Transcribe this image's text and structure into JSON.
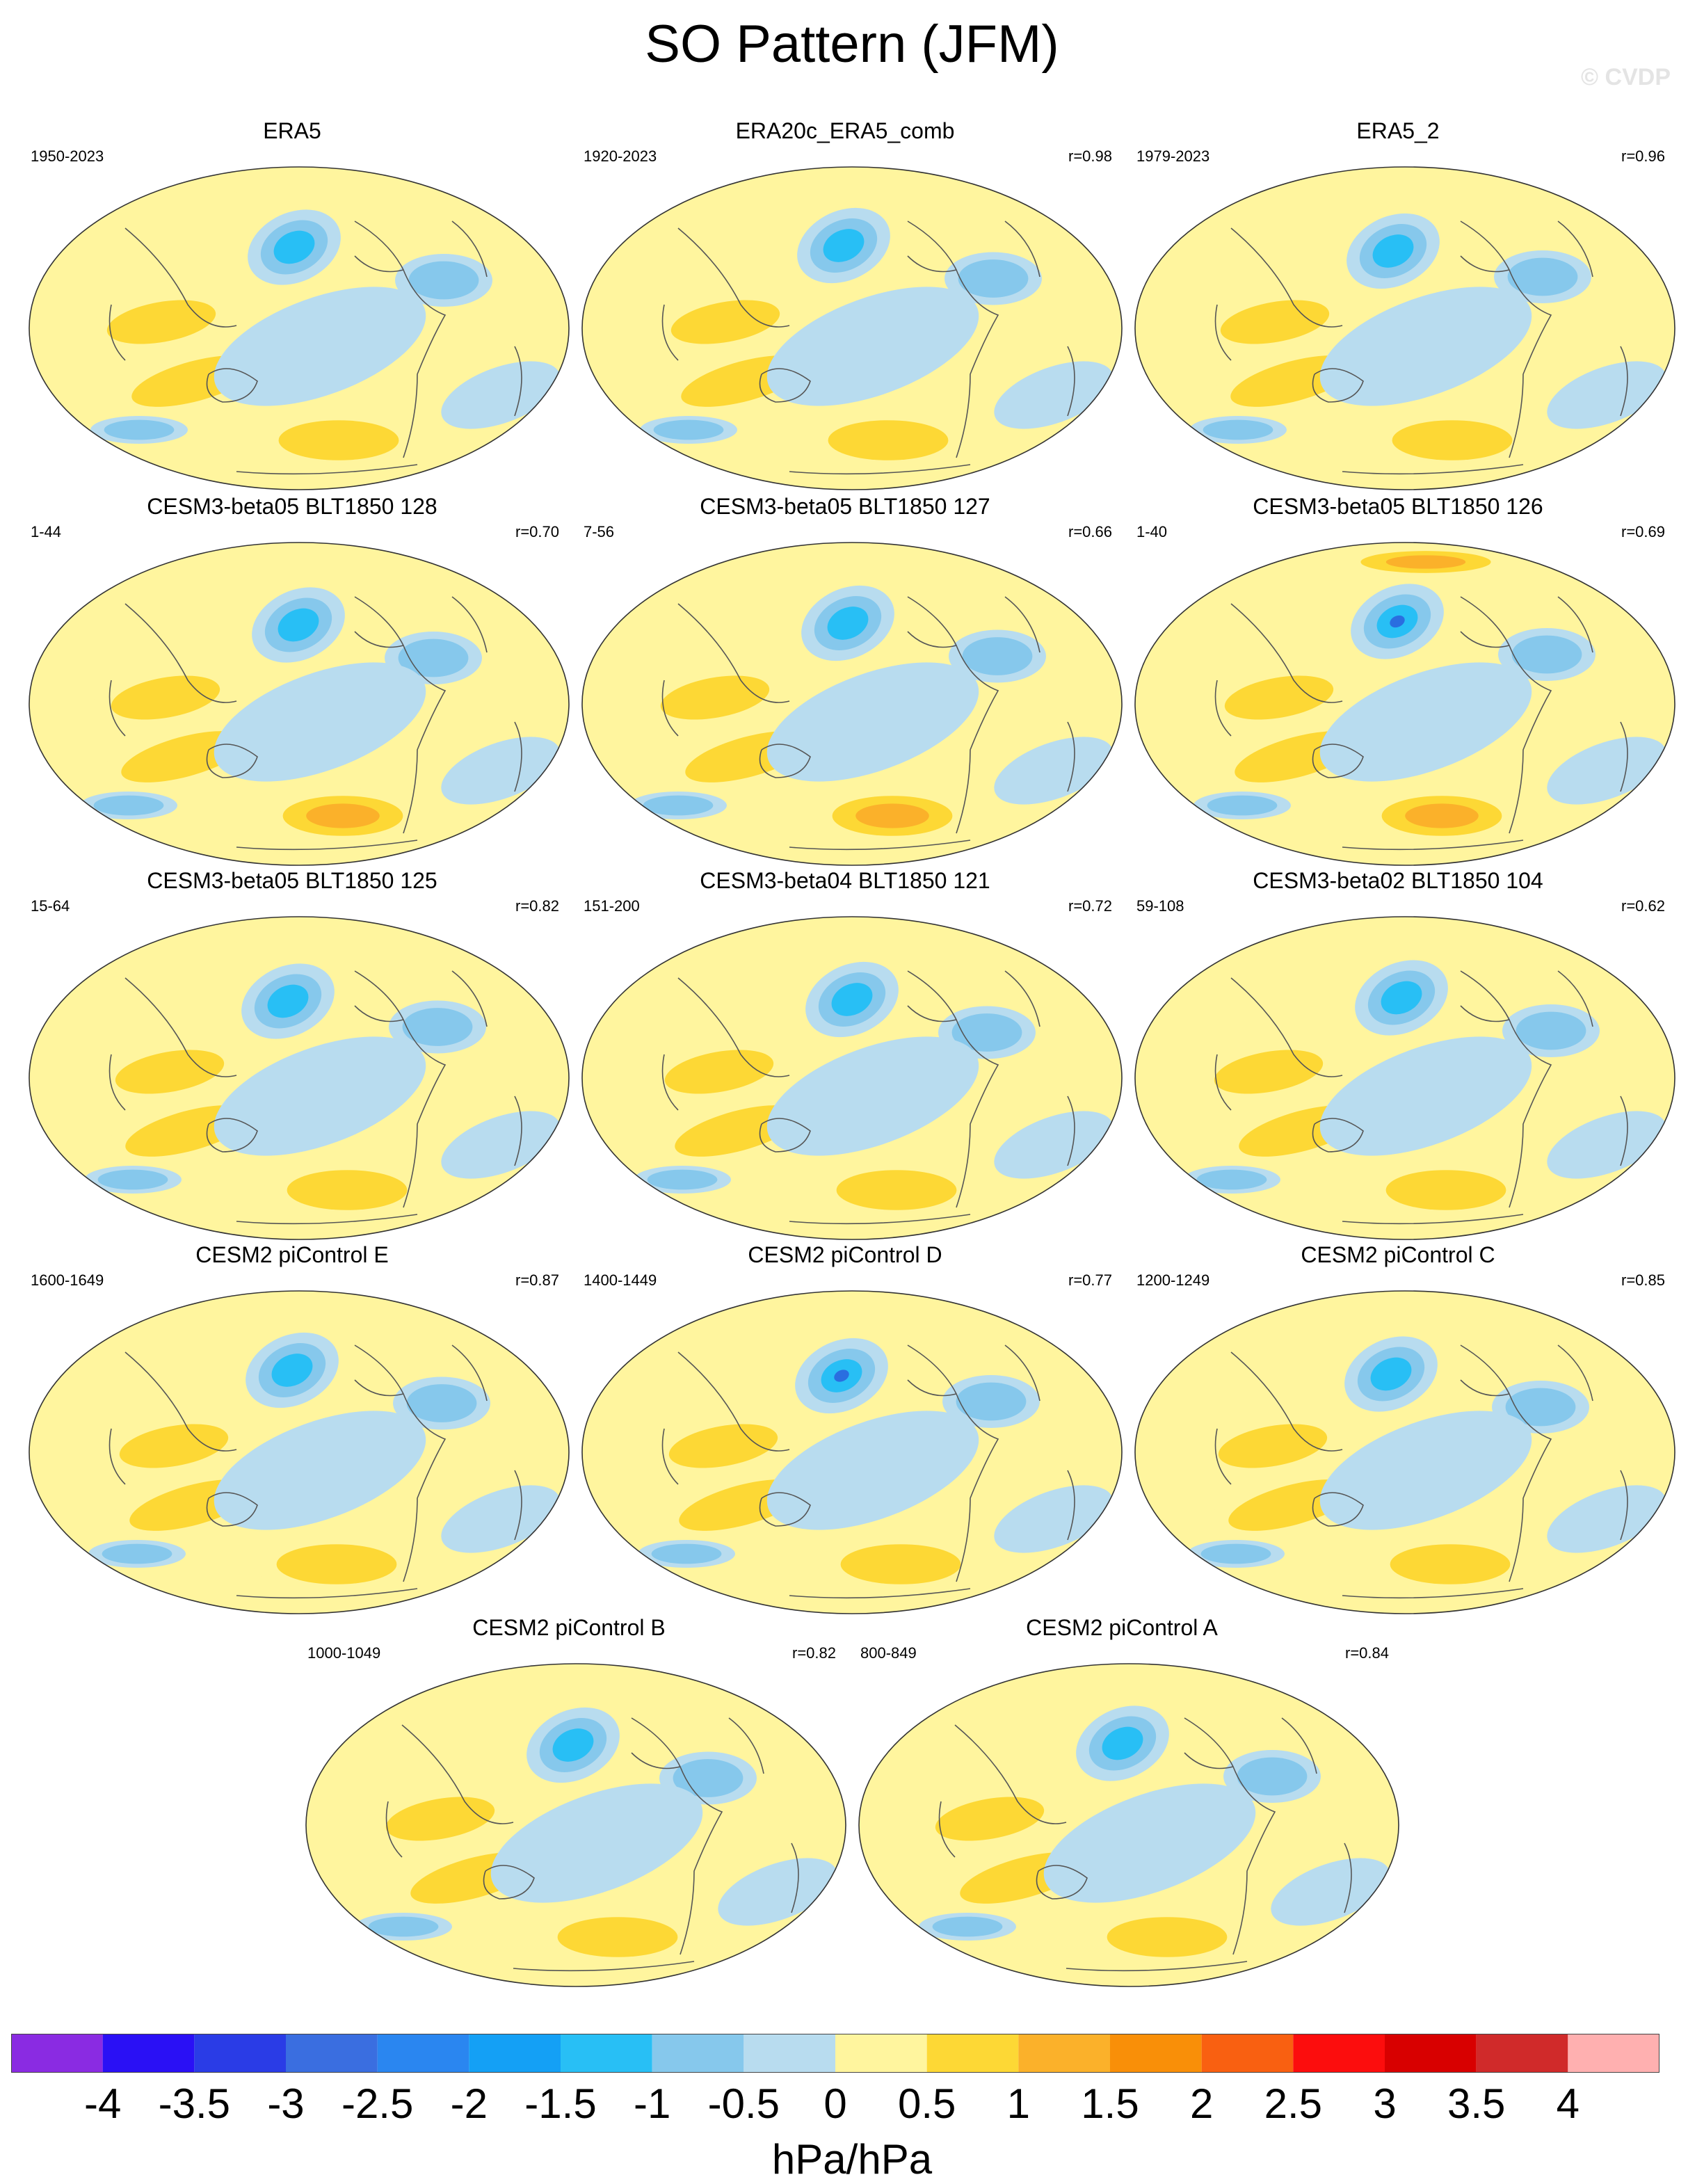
{
  "title": "SO Pattern (JFM)",
  "watermark": "© CVDP",
  "panels": [
    {
      "name": "ERA5",
      "years": "1950-2023",
      "r": ""
    },
    {
      "name": "ERA20c_ERA5_comb",
      "years": "1920-2023",
      "r": "r=0.98"
    },
    {
      "name": "ERA5_2",
      "years": "1979-2023",
      "r": "r=0.96"
    },
    {
      "name": "CESM3-beta05 BLT1850 128",
      "years": "1-44",
      "r": "r=0.70"
    },
    {
      "name": "CESM3-beta05 BLT1850 127",
      "years": "7-56",
      "r": "r=0.66"
    },
    {
      "name": "CESM3-beta05 BLT1850 126",
      "years": "1-40",
      "r": "r=0.69"
    },
    {
      "name": "CESM3-beta05 BLT1850 125",
      "years": "15-64",
      "r": "r=0.82"
    },
    {
      "name": "CESM3-beta04 BLT1850 121",
      "years": "151-200",
      "r": "r=0.72"
    },
    {
      "name": "CESM3-beta02 BLT1850 104",
      "years": "59-108",
      "r": "r=0.62"
    },
    {
      "name": "CESM2 piControl E",
      "years": "1600-1649",
      "r": "r=0.87"
    },
    {
      "name": "CESM2 piControl D",
      "years": "1400-1449",
      "r": "r=0.77"
    },
    {
      "name": "CESM2 piControl C",
      "years": "1200-1249",
      "r": "r=0.85"
    },
    {
      "name": "CESM2 piControl B",
      "years": "1000-1049",
      "r": "r=0.82"
    },
    {
      "name": "CESM2 piControl A",
      "years": "800-849",
      "r": "r=0.84"
    }
  ],
  "colorbar": {
    "units": "hPa/hPa",
    "ticks": [
      "-4",
      "-3.5",
      "-3",
      "-2.5",
      "-2",
      "-1.5",
      "-1",
      "-0.5",
      "0",
      "0.5",
      "1",
      "1.5",
      "2",
      "2.5",
      "3",
      "3.5",
      "4"
    ],
    "colors": [
      "#8a2be2",
      "#2a10f5",
      "#2a3ce6",
      "#3a6ee0",
      "#2a86f0",
      "#14a0f5",
      "#28bff5",
      "#86c8ec",
      "#b8dcef",
      "#fff59e",
      "#fdd835",
      "#fbb12a",
      "#f98f08",
      "#f96011",
      "#fc0d0d",
      "#d80000",
      "#d02a2a",
      "#ffb0b0"
    ]
  },
  "colors": {
    "land_line": "#555555",
    "neg_strong": "#2a6ee0",
    "neg_mid": "#28bff5",
    "neg_weak": "#86c8ec",
    "neg_faint": "#b8dcef",
    "pos_faint": "#fff59e",
    "pos_weak": "#fdd835",
    "pos_mid": "#fbb12a",
    "pos_strong": "#f98f08"
  }
}
